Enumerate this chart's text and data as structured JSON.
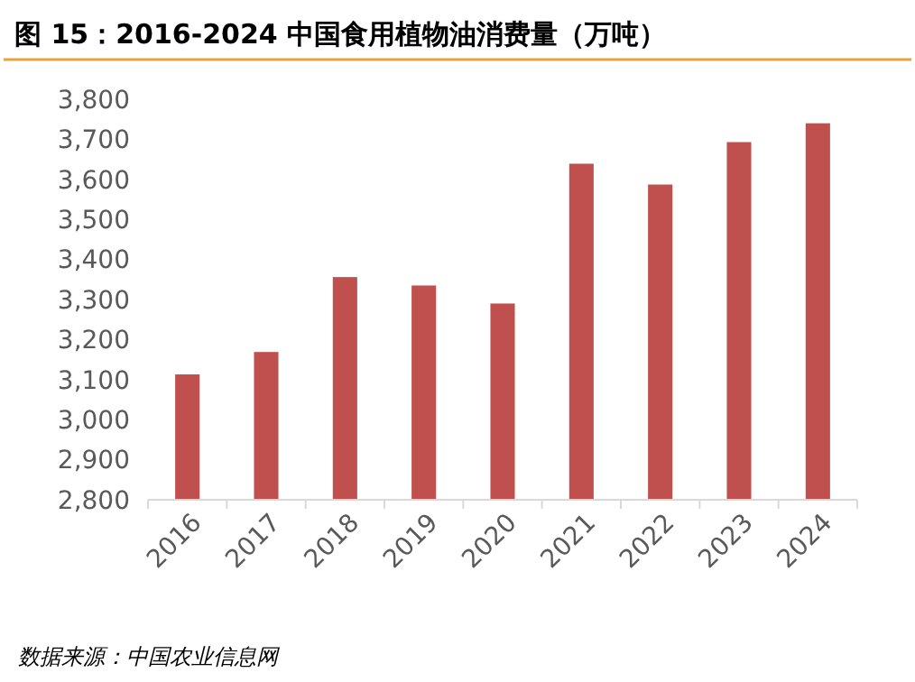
{
  "chart_data": {
    "type": "bar",
    "title": "图 15：2016-2024 中国食用植物油消费量（万吨）",
    "categories": [
      "2016",
      "2017",
      "2018",
      "2019",
      "2020",
      "2021",
      "2022",
      "2023",
      "2024"
    ],
    "values": [
      3113,
      3169,
      3356,
      3335,
      3290,
      3639,
      3587,
      3693,
      3740
    ],
    "color": "#c0504d",
    "ylim": [
      2800,
      3800
    ],
    "yticks": [
      {
        "value": 2800,
        "label": "2,800"
      },
      {
        "value": 2900,
        "label": "2,900"
      },
      {
        "value": 3000,
        "label": "3,000"
      },
      {
        "value": 3100,
        "label": "3,100"
      },
      {
        "value": 3200,
        "label": "3,200"
      },
      {
        "value": 3300,
        "label": "3,300"
      },
      {
        "value": 3400,
        "label": "3,400"
      },
      {
        "value": 3500,
        "label": "3,500"
      },
      {
        "value": 3600,
        "label": "3,600"
      },
      {
        "value": 3700,
        "label": "3,700"
      },
      {
        "value": 3800,
        "label": "3,800"
      }
    ],
    "grid": false,
    "annotations": [
      "数据来源：中国农业信息网"
    ]
  }
}
